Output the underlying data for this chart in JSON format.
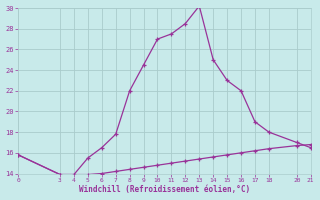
{
  "xlabel": "Windchill (Refroidissement éolien,°C)",
  "x_ticks": [
    0,
    3,
    4,
    5,
    6,
    7,
    8,
    9,
    10,
    11,
    12,
    13,
    14,
    15,
    16,
    17,
    18,
    20,
    21
  ],
  "x_main": [
    0,
    3,
    4,
    5,
    6,
    7,
    8,
    9,
    10,
    11,
    12,
    13,
    14,
    15,
    16,
    17,
    18,
    20,
    21
  ],
  "y_main": [
    15.8,
    13.9,
    13.9,
    15.5,
    16.5,
    17.8,
    22.0,
    24.5,
    27.0,
    27.5,
    28.5,
    30.2,
    25.0,
    23.0,
    22.0,
    19.0,
    18.0,
    17.0,
    16.5
  ],
  "x_line2": [
    0,
    3,
    4,
    5,
    6,
    7,
    8,
    9,
    10,
    11,
    12,
    13,
    14,
    15,
    16,
    17,
    18,
    20,
    21
  ],
  "y_line2": [
    15.8,
    13.9,
    13.9,
    13.9,
    14.0,
    14.2,
    14.4,
    14.6,
    14.8,
    15.0,
    15.2,
    15.4,
    15.6,
    15.8,
    16.0,
    16.2,
    16.4,
    16.7,
    16.8
  ],
  "ylim": [
    14,
    30
  ],
  "xlim": [
    0,
    21
  ],
  "y_ticks": [
    14,
    16,
    18,
    20,
    22,
    24,
    26,
    28,
    30
  ],
  "line_color": "#993399",
  "bg_color": "#c8eaea",
  "grid_color": "#aacccc",
  "marker": "+"
}
